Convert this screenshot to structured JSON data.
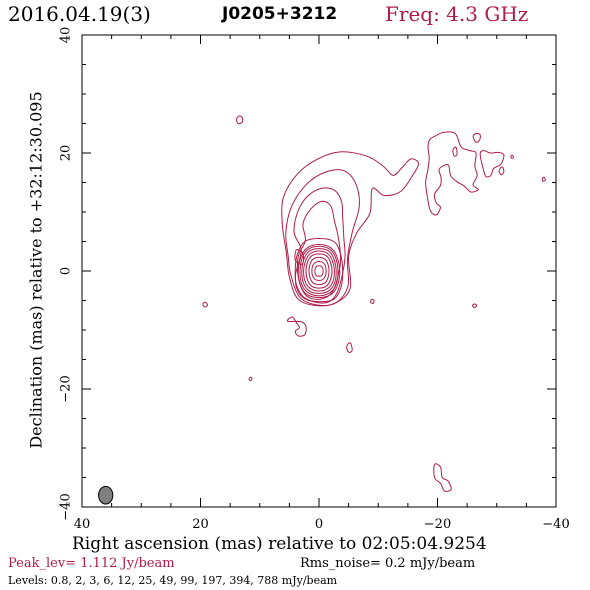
{
  "header": {
    "date": "2016.04.19(3)",
    "source": "J0205+3212",
    "freq": "Freq: 4.3 GHz"
  },
  "footer": {
    "peak": "Peak_lev=  1.112 Jy/beam",
    "rms": "Rms_noise=  0.2 mJy/beam",
    "levels": "Levels: 0.8,   2,   3,   6,  12,  25,  49,  99, 197, 394, 788 mJy/beam"
  },
  "chart_data": {
    "type": "contour",
    "xlabel": "Right ascension (mas) relative to 02:05:04.9254",
    "ylabel": "Declination (mas) relative to +32:12:30.095",
    "xlim": [
      40,
      -40
    ],
    "ylim": [
      -40,
      40
    ],
    "xticks": [
      "40",
      "20",
      "0",
      "−20",
      "−40"
    ],
    "yticks": [
      "−40",
      "−20",
      "0",
      "20",
      "40"
    ],
    "contour_color": "#b01c47",
    "beam": {
      "x": 36,
      "y": -38,
      "major": 3.0,
      "minor": 2.4
    },
    "core": {
      "x": 0,
      "y": 0
    },
    "contour_levels_mJy": [
      0.8,
      2,
      3,
      6,
      12,
      25,
      49,
      99,
      197,
      394,
      788
    ],
    "contours": [
      [
        [
          0,
          4.5
        ],
        [
          1.9,
          4
        ],
        [
          3,
          2.5
        ],
        [
          3.5,
          0
        ],
        [
          3.1,
          -2.5
        ],
        [
          2,
          -4
        ],
        [
          0,
          -4.5
        ],
        [
          -2,
          -4
        ],
        [
          -3.1,
          -2.5
        ],
        [
          -3.5,
          0
        ],
        [
          -3,
          2.5
        ],
        [
          -1.9,
          4
        ]
      ],
      [
        [
          0,
          4.2
        ],
        [
          1.8,
          3.7
        ],
        [
          2.8,
          2.3
        ],
        [
          3.2,
          0
        ],
        [
          2.9,
          -2.3
        ],
        [
          1.8,
          -3.7
        ],
        [
          0,
          -4.2
        ],
        [
          -1.8,
          -3.7
        ],
        [
          -2.9,
          -2.3
        ],
        [
          -3.2,
          0
        ],
        [
          -2.8,
          2.3
        ],
        [
          -1.8,
          3.7
        ]
      ],
      [
        [
          0,
          3.8
        ],
        [
          1.6,
          3.4
        ],
        [
          2.5,
          2.1
        ],
        [
          2.9,
          0
        ],
        [
          2.6,
          -2.1
        ],
        [
          1.6,
          -3.4
        ],
        [
          0,
          -3.8
        ],
        [
          -1.6,
          -3.4
        ],
        [
          -2.6,
          -2.1
        ],
        [
          -2.9,
          0
        ],
        [
          -2.5,
          2.1
        ],
        [
          -1.6,
          3.4
        ]
      ],
      [
        [
          0,
          3.4
        ],
        [
          1.4,
          3
        ],
        [
          2.2,
          1.9
        ],
        [
          2.6,
          0
        ],
        [
          2.3,
          -1.9
        ],
        [
          1.4,
          -3
        ],
        [
          0,
          -3.4
        ],
        [
          -1.4,
          -3
        ],
        [
          -2.3,
          -1.9
        ],
        [
          -2.6,
          0
        ],
        [
          -2.2,
          1.9
        ],
        [
          -1.4,
          3
        ]
      ],
      [
        [
          0,
          2.9
        ],
        [
          1.2,
          2.6
        ],
        [
          1.9,
          1.6
        ],
        [
          2.2,
          0
        ],
        [
          1.9,
          -1.6
        ],
        [
          1.2,
          -2.6
        ],
        [
          0,
          -2.9
        ],
        [
          -1.2,
          -2.6
        ],
        [
          -1.9,
          -1.6
        ],
        [
          -2.2,
          0
        ],
        [
          -1.9,
          1.6
        ],
        [
          -1.2,
          2.6
        ]
      ],
      [
        [
          0,
          2.3
        ],
        [
          1,
          2
        ],
        [
          1.5,
          1.2
        ],
        [
          1.7,
          0
        ],
        [
          1.5,
          -1.2
        ],
        [
          1,
          -2
        ],
        [
          0,
          -2.3
        ],
        [
          -1,
          -2
        ],
        [
          -1.5,
          -1.2
        ],
        [
          -1.7,
          0
        ],
        [
          -1.5,
          1.2
        ],
        [
          -1,
          2
        ]
      ],
      [
        [
          0,
          1.6
        ],
        [
          0.7,
          1.4
        ],
        [
          1.1,
          0.8
        ],
        [
          1.2,
          0
        ],
        [
          1.1,
          -0.8
        ],
        [
          0.7,
          -1.4
        ],
        [
          0,
          -1.6
        ],
        [
          -0.7,
          -1.4
        ],
        [
          -1.1,
          -0.8
        ],
        [
          -1.2,
          0
        ],
        [
          -1.1,
          0.8
        ],
        [
          -0.7,
          1.4
        ]
      ],
      [
        [
          0,
          0.9
        ],
        [
          0.5,
          0.7
        ],
        [
          0.7,
          0
        ],
        [
          0.5,
          -0.7
        ],
        [
          0,
          -0.9
        ],
        [
          -0.5,
          -0.7
        ],
        [
          -0.7,
          0
        ],
        [
          -0.5,
          0.7
        ]
      ],
      [
        [
          0,
          5.5
        ],
        [
          2.4,
          5
        ],
        [
          3.6,
          3
        ],
        [
          4,
          0.5
        ],
        [
          3.8,
          -2.8
        ],
        [
          2.4,
          -4.7
        ],
        [
          0,
          -5.2
        ],
        [
          -2.5,
          -4.8
        ],
        [
          -3.7,
          -2.8
        ],
        [
          -4,
          0
        ],
        [
          -3.6,
          3
        ],
        [
          -2.5,
          5
        ]
      ],
      [
        [
          2.3,
          5.2
        ],
        [
          2.7,
          8
        ],
        [
          1.4,
          10.5
        ],
        [
          -0.5,
          11.8
        ],
        [
          -2,
          11
        ],
        [
          -2.6,
          8.5
        ],
        [
          -3.2,
          6
        ],
        [
          -3.6,
          3
        ],
        [
          -3.5,
          0.5
        ],
        [
          -2.3,
          -3.5
        ],
        [
          0,
          -4.8
        ],
        [
          2.3,
          -4
        ],
        [
          3.5,
          -1
        ],
        [
          3.5,
          2.5
        ]
      ],
      [
        [
          3,
          3.5
        ],
        [
          4.2,
          6.5
        ],
        [
          3.6,
          10
        ],
        [
          2,
          12.6
        ],
        [
          -0.4,
          14
        ],
        [
          -2.6,
          13.7
        ],
        [
          -3.8,
          11.8
        ],
        [
          -4,
          9
        ],
        [
          -4.2,
          5.5
        ],
        [
          -4.4,
          2.5
        ],
        [
          -3.9,
          -0.8
        ],
        [
          -3,
          -3.8
        ],
        [
          -1.5,
          -5.3
        ],
        [
          1,
          -5.2
        ],
        [
          3,
          -4
        ],
        [
          4,
          -1
        ]
      ],
      [
        [
          4.8,
          -0.5
        ],
        [
          5.2,
          2.5
        ],
        [
          5.6,
          6.5
        ],
        [
          4.6,
          11
        ],
        [
          2,
          14.8
        ],
        [
          -1.2,
          16.8
        ],
        [
          -4.2,
          17
        ],
        [
          -6.2,
          14.8
        ],
        [
          -6.8,
          11
        ],
        [
          -5.6,
          6.5
        ],
        [
          -4.8,
          2
        ],
        [
          -4.9,
          -2.5
        ],
        [
          -3,
          -5.3
        ],
        [
          0,
          -5.8
        ],
        [
          3.2,
          -4.5
        ]
      ],
      [
        [
          5,
          -1
        ],
        [
          5.5,
          3
        ],
        [
          6.2,
          8
        ],
        [
          6,
          12.5
        ],
        [
          3.6,
          16.5
        ],
        [
          0.2,
          19
        ],
        [
          -3.6,
          20.2
        ],
        [
          -8,
          19.5
        ],
        [
          -10.8,
          17.8
        ],
        [
          -12.5,
          16.2
        ],
        [
          -14,
          17.5
        ],
        [
          -15.5,
          19
        ],
        [
          -16.8,
          18.2
        ],
        [
          -15.8,
          16.2
        ],
        [
          -13.8,
          13.5
        ],
        [
          -11,
          12.8
        ],
        [
          -9,
          14
        ],
        [
          -8.6,
          9.8
        ],
        [
          -6.4,
          6.5
        ],
        [
          -5,
          2.5
        ],
        [
          -5.3,
          -2.8
        ],
        [
          -3.2,
          -5.2
        ],
        [
          0,
          -5.9
        ],
        [
          3.5,
          -4.8
        ]
      ],
      [
        [
          3.8,
          3.6
        ],
        [
          4,
          1.8
        ],
        [
          2.8,
          1.2
        ],
        [
          2.7,
          2.9
        ]
      ],
      [
        [
          13.4,
          26.3
        ],
        [
          13.9,
          25.8
        ],
        [
          13.7,
          25
        ],
        [
          13,
          25.2
        ],
        [
          12.9,
          25.9
        ]
      ],
      [
        [
          19.2,
          -5.3
        ],
        [
          19.6,
          -5.6
        ],
        [
          19.3,
          -6.1
        ],
        [
          18.8,
          -5.8
        ]
      ],
      [
        [
          11.6,
          -18
        ],
        [
          11.8,
          -18.4
        ],
        [
          11.5,
          -18.6
        ],
        [
          11.3,
          -18.2
        ]
      ],
      [
        [
          5.3,
          -8.5
        ],
        [
          4.5,
          -7.8
        ],
        [
          3.8,
          -8.8
        ],
        [
          3.3,
          -9.6
        ],
        [
          4,
          -10.2
        ],
        [
          3.5,
          -11
        ],
        [
          2.4,
          -10.8
        ],
        [
          2.2,
          -9.4
        ],
        [
          3,
          -8.6
        ]
      ],
      [
        [
          -4.8,
          -12.5
        ],
        [
          -5.3,
          -12.2
        ],
        [
          -5.6,
          -13.4
        ],
        [
          -5.1,
          -13.8
        ],
        [
          -4.7,
          -13.2
        ]
      ],
      [
        [
          -8.9,
          -4.8
        ],
        [
          -9.3,
          -5
        ],
        [
          -9.1,
          -5.5
        ],
        [
          -8.7,
          -5.3
        ]
      ],
      [
        [
          -26.2,
          -5.6
        ],
        [
          -26.6,
          -5.8
        ],
        [
          -26.3,
          -6.2
        ],
        [
          -25.9,
          -5.9
        ]
      ],
      [
        [
          -19.5,
          -32.8
        ],
        [
          -20.5,
          -33.2
        ],
        [
          -20.8,
          -35
        ],
        [
          -21.8,
          -35.6
        ],
        [
          -22.3,
          -37
        ],
        [
          -21.2,
          -37.3
        ],
        [
          -20.5,
          -36
        ],
        [
          -19.5,
          -35
        ]
      ],
      [
        [
          -19.5,
          22.8
        ],
        [
          -21,
          23.5
        ],
        [
          -23,
          23.3
        ],
        [
          -24,
          21
        ],
        [
          -25.5,
          20.4
        ],
        [
          -26.5,
          20
        ],
        [
          -26.3,
          17.8
        ],
        [
          -26.7,
          16.2
        ],
        [
          -26,
          14.6
        ],
        [
          -26.9,
          13.8
        ],
        [
          -25.6,
          13.4
        ],
        [
          -24.5,
          14.4
        ],
        [
          -23.2,
          15.2
        ],
        [
          -22.2,
          16.2
        ],
        [
          -21.8,
          18
        ],
        [
          -20.3,
          17.3
        ],
        [
          -20.6,
          15.8
        ],
        [
          -20.5,
          14.5
        ],
        [
          -19.5,
          13
        ],
        [
          -19.8,
          11.5
        ],
        [
          -20.5,
          10.8
        ],
        [
          -19.8,
          9.5
        ],
        [
          -18.8,
          10.2
        ],
        [
          -18.3,
          12.5
        ],
        [
          -18,
          15
        ],
        [
          -18.4,
          17.3
        ],
        [
          -18.6,
          19.2
        ],
        [
          -18.4,
          21
        ],
        [
          -18.7,
          22.3
        ]
      ],
      [
        [
          -22.8,
          19.5
        ],
        [
          -23.3,
          19.8
        ],
        [
          -23.1,
          21
        ],
        [
          -22.6,
          20.5
        ]
      ],
      [
        [
          -26,
          22.8
        ],
        [
          -26.5,
          23.3
        ],
        [
          -27.2,
          23.1
        ],
        [
          -27.1,
          22.2
        ],
        [
          -26.5,
          21.8
        ]
      ],
      [
        [
          -27.2,
          19.8
        ],
        [
          -27.8,
          20.4
        ],
        [
          -28.9,
          20
        ],
        [
          -30.2,
          20.1
        ],
        [
          -31.2,
          19.7
        ],
        [
          -30.7,
          18.1
        ],
        [
          -29.5,
          17.4
        ],
        [
          -29,
          16.2
        ],
        [
          -28.2,
          16
        ],
        [
          -27.8,
          17
        ]
      ],
      [
        [
          -30.6,
          17.4
        ],
        [
          -31,
          17.6
        ],
        [
          -31.2,
          16.8
        ],
        [
          -30.8,
          16.3
        ],
        [
          -30.4,
          16.8
        ]
      ],
      [
        [
          -32.4,
          19.5
        ],
        [
          -32.7,
          19.6
        ],
        [
          -32.8,
          19.2
        ],
        [
          -32.5,
          19.1
        ]
      ],
      [
        [
          -37.7,
          15.7
        ],
        [
          -38,
          15.9
        ],
        [
          -38.2,
          15.4
        ],
        [
          -37.8,
          15.2
        ]
      ]
    ]
  }
}
